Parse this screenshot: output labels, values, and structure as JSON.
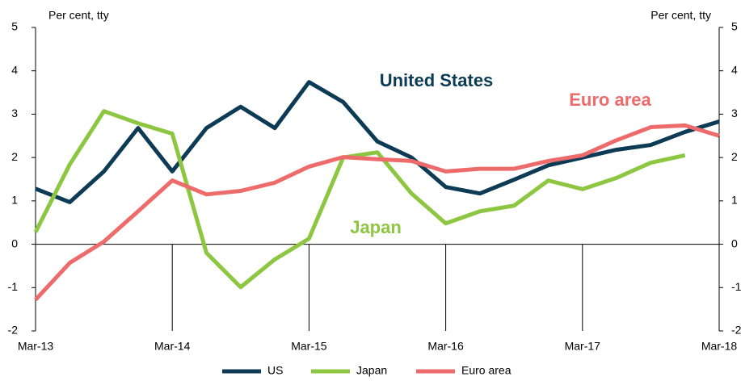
{
  "chart_data": {
    "type": "line",
    "y_label": "Per cent, tty",
    "y2_label": "Per cent, tty",
    "categories": [
      "Mar-13",
      null,
      null,
      null,
      "Mar-14",
      null,
      null,
      null,
      "Mar-15",
      null,
      null,
      null,
      "Mar-16",
      null,
      null,
      null,
      "Mar-17",
      null,
      null,
      null,
      "Mar-18"
    ],
    "series": [
      {
        "name": "US",
        "color": "#0d3b56",
        "values": [
          1.28,
          0.97,
          1.68,
          2.68,
          1.68,
          2.68,
          3.17,
          2.68,
          3.74,
          3.28,
          2.37,
          2.0,
          1.32,
          1.17,
          1.49,
          1.82,
          2.0,
          2.18,
          2.29,
          2.59,
          2.83
        ]
      },
      {
        "name": "Japan",
        "color": "#8dc641",
        "values": [
          0.28,
          1.84,
          3.07,
          2.79,
          2.55,
          -0.2,
          -0.99,
          -0.35,
          0.13,
          2.0,
          2.12,
          1.17,
          0.48,
          0.76,
          0.89,
          1.47,
          1.27,
          1.53,
          1.88,
          2.05,
          null
        ]
      },
      {
        "name": "Euro area",
        "color": "#ee6b6b",
        "values": [
          -1.28,
          -0.43,
          0.06,
          0.76,
          1.47,
          1.15,
          1.23,
          1.42,
          1.79,
          2.01,
          1.96,
          1.92,
          1.68,
          1.74,
          1.74,
          1.92,
          2.05,
          2.4,
          2.7,
          2.74,
          2.5
        ]
      }
    ],
    "annotations": [
      {
        "text": "United States",
        "series": 0
      },
      {
        "text": "Euro area",
        "series": 2
      },
      {
        "text": "Japan",
        "series": 1
      }
    ],
    "ylim": [
      -2,
      5
    ],
    "yticks": [
      -2,
      -1,
      0,
      1,
      2,
      3,
      4,
      5
    ],
    "y2lim": [
      -2,
      5
    ],
    "y2ticks": [
      -2,
      -1,
      0,
      1,
      2,
      3,
      4,
      5
    ],
    "grid": false,
    "legend": "bottom"
  }
}
